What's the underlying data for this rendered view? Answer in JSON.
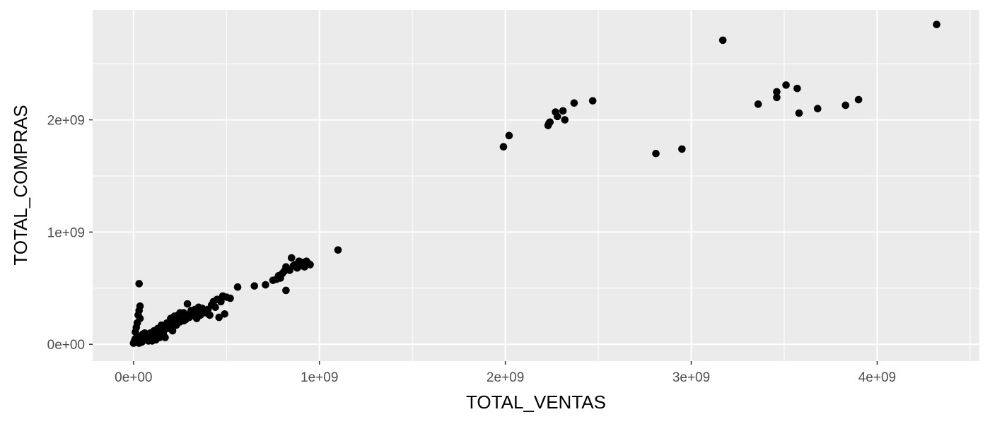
{
  "chart_data": {
    "type": "scatter",
    "title": "",
    "xlabel": "TOTAL_VENTAS",
    "ylabel": "TOTAL_COMPRAS",
    "xlim": [
      -220000000,
      4550000000
    ],
    "ylim": [
      -150000000,
      2980000000
    ],
    "x_ticks": [
      0,
      1000000000,
      2000000000,
      3000000000,
      4000000000
    ],
    "x_tick_labels": [
      "0e+00",
      "1e+09",
      "2e+09",
      "3e+09",
      "4e+09"
    ],
    "y_ticks": [
      0,
      1000000000,
      2000000000
    ],
    "y_tick_labels": [
      "0e+00",
      "1e+09",
      "2e+09"
    ],
    "grid": true,
    "colors": {
      "panel": "#ebebeb",
      "grid": "#ffffff",
      "point": "#000000"
    },
    "series": [
      {
        "points": [
          [
            1990000000,
            1760000000
          ],
          [
            2020000000,
            1860000000
          ],
          [
            2230000000,
            1950000000
          ],
          [
            2235000000,
            1970000000
          ],
          [
            2240000000,
            1980000000
          ],
          [
            2270000000,
            2070000000
          ],
          [
            2280000000,
            2030000000
          ],
          [
            2310000000,
            2080000000
          ],
          [
            2320000000,
            2000000000
          ],
          [
            2370000000,
            2150000000
          ],
          [
            2470000000,
            2170000000
          ],
          [
            2810000000,
            1700000000
          ],
          [
            2950000000,
            1740000000
          ],
          [
            3170000000,
            2710000000
          ],
          [
            3360000000,
            2140000000
          ],
          [
            3460000000,
            2200000000
          ],
          [
            3460000000,
            2250000000
          ],
          [
            3510000000,
            2310000000
          ],
          [
            3570000000,
            2280000000
          ],
          [
            3580000000,
            2060000000
          ],
          [
            3680000000,
            2100000000
          ],
          [
            3830000000,
            2130000000
          ],
          [
            3900000000,
            2180000000
          ],
          [
            4320000000,
            2850000000
          ],
          [
            1100000000,
            840000000
          ],
          [
            30000000,
            540000000
          ],
          [
            35000000,
            340000000
          ],
          [
            30000000,
            300000000
          ],
          [
            25000000,
            260000000
          ],
          [
            35000000,
            230000000
          ],
          [
            20000000,
            190000000
          ],
          [
            15000000,
            150000000
          ],
          [
            10000000,
            110000000
          ],
          [
            0,
            10000000
          ],
          [
            5000000,
            30000000
          ],
          [
            10000000,
            50000000
          ],
          [
            15000000,
            20000000
          ],
          [
            20000000,
            70000000
          ],
          [
            25000000,
            40000000
          ],
          [
            30000000,
            10000000
          ],
          [
            40000000,
            60000000
          ],
          [
            45000000,
            20000000
          ],
          [
            50000000,
            90000000
          ],
          [
            60000000,
            40000000
          ],
          [
            70000000,
            70000000
          ],
          [
            80000000,
            30000000
          ],
          [
            90000000,
            100000000
          ],
          [
            100000000,
            60000000
          ],
          [
            110000000,
            120000000
          ],
          [
            120000000,
            80000000
          ],
          [
            130000000,
            140000000
          ],
          [
            140000000,
            110000000
          ],
          [
            150000000,
            170000000
          ],
          [
            160000000,
            130000000
          ],
          [
            170000000,
            60000000
          ],
          [
            180000000,
            190000000
          ],
          [
            190000000,
            150000000
          ],
          [
            200000000,
            180000000
          ],
          [
            210000000,
            120000000
          ],
          [
            220000000,
            210000000
          ],
          [
            230000000,
            170000000
          ],
          [
            240000000,
            260000000
          ],
          [
            250000000,
            200000000
          ],
          [
            260000000,
            240000000
          ],
          [
            270000000,
            280000000
          ],
          [
            280000000,
            220000000
          ],
          [
            290000000,
            260000000
          ],
          [
            300000000,
            240000000
          ],
          [
            310000000,
            300000000
          ],
          [
            320000000,
            270000000
          ],
          [
            330000000,
            310000000
          ],
          [
            340000000,
            230000000
          ],
          [
            350000000,
            290000000
          ],
          [
            360000000,
            260000000
          ],
          [
            370000000,
            320000000
          ],
          [
            380000000,
            300000000
          ],
          [
            390000000,
            280000000
          ],
          [
            400000000,
            310000000
          ],
          [
            410000000,
            260000000
          ],
          [
            420000000,
            350000000
          ],
          [
            430000000,
            380000000
          ],
          [
            440000000,
            330000000
          ],
          [
            450000000,
            400000000
          ],
          [
            460000000,
            240000000
          ],
          [
            470000000,
            380000000
          ],
          [
            480000000,
            430000000
          ],
          [
            490000000,
            270000000
          ],
          [
            500000000,
            420000000
          ],
          [
            520000000,
            410000000
          ],
          [
            560000000,
            510000000
          ],
          [
            290000000,
            360000000
          ],
          [
            250000000,
            280000000
          ],
          [
            220000000,
            250000000
          ],
          [
            200000000,
            230000000
          ],
          [
            180000000,
            140000000
          ],
          [
            160000000,
            100000000
          ],
          [
            140000000,
            60000000
          ],
          [
            120000000,
            40000000
          ],
          [
            100000000,
            30000000
          ],
          [
            80000000,
            80000000
          ],
          [
            60000000,
            100000000
          ],
          [
            200000000,
            160000000
          ],
          [
            230000000,
            190000000
          ],
          [
            270000000,
            210000000
          ],
          [
            330000000,
            250000000
          ],
          [
            350000000,
            330000000
          ],
          [
            650000000,
            520000000
          ],
          [
            710000000,
            530000000
          ],
          [
            750000000,
            570000000
          ],
          [
            770000000,
            580000000
          ],
          [
            780000000,
            610000000
          ],
          [
            790000000,
            590000000
          ],
          [
            800000000,
            630000000
          ],
          [
            810000000,
            650000000
          ],
          [
            820000000,
            480000000
          ],
          [
            820000000,
            690000000
          ],
          [
            840000000,
            660000000
          ],
          [
            850000000,
            770000000
          ],
          [
            860000000,
            700000000
          ],
          [
            870000000,
            710000000
          ],
          [
            880000000,
            680000000
          ],
          [
            890000000,
            740000000
          ],
          [
            900000000,
            700000000
          ],
          [
            910000000,
            730000000
          ],
          [
            920000000,
            690000000
          ],
          [
            930000000,
            740000000
          ],
          [
            940000000,
            720000000
          ],
          [
            950000000,
            710000000
          ]
        ]
      }
    ]
  }
}
